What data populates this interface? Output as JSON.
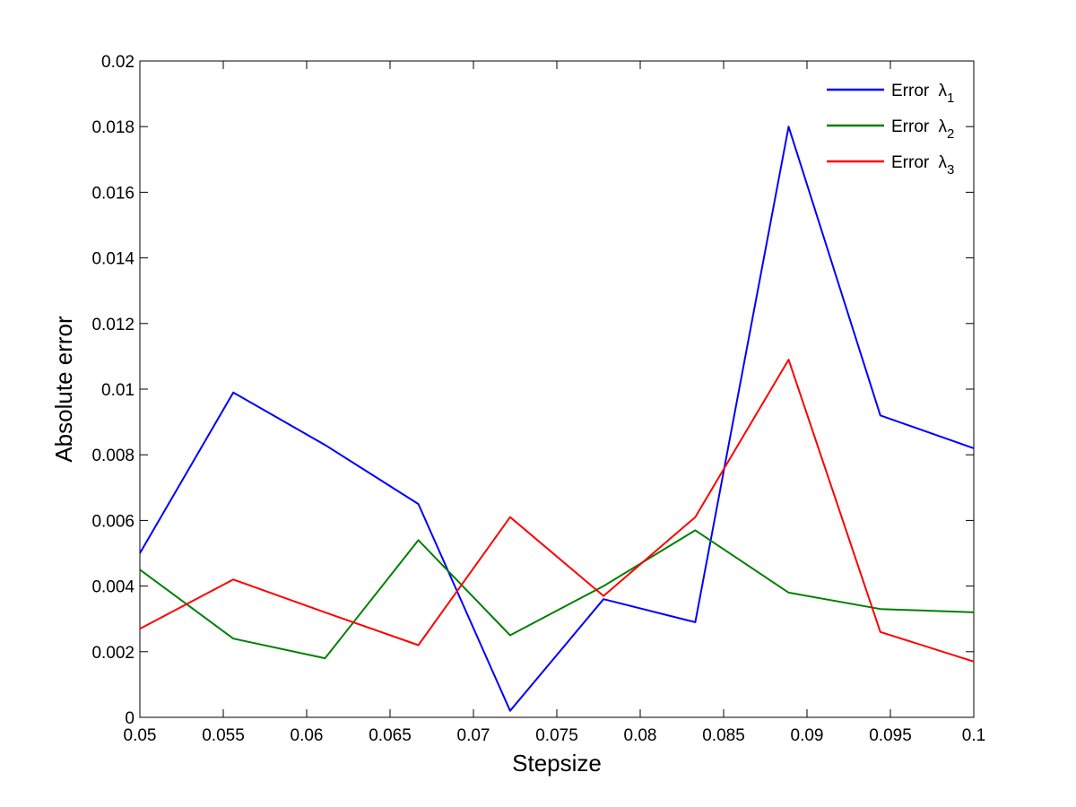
{
  "chart_data": {
    "type": "line",
    "title": "",
    "xlabel": "Stepsize",
    "ylabel": "Absolute error",
    "xlim": [
      0.05,
      0.1
    ],
    "ylim": [
      0,
      0.02
    ],
    "xticks": [
      0.05,
      0.055,
      0.06,
      0.065,
      0.07,
      0.075,
      0.08,
      0.085,
      0.09,
      0.095,
      0.1
    ],
    "xtick_labels": [
      "0.05",
      "0.055",
      "0.06",
      "0.065",
      "0.07",
      "0.075",
      "0.08",
      "0.085",
      "0.09",
      "0.095",
      "0.1"
    ],
    "yticks": [
      0,
      0.002,
      0.004,
      0.006,
      0.008,
      0.01,
      0.012,
      0.014,
      0.016,
      0.018,
      0.02
    ],
    "ytick_labels": [
      "0",
      "0.002",
      "0.004",
      "0.006",
      "0.008",
      "0.01",
      "0.012",
      "0.014",
      "0.016",
      "0.018",
      "0.02"
    ],
    "grid": false,
    "legend_position": "top-right",
    "x": [
      0.05,
      0.0556,
      0.0611,
      0.0667,
      0.0722,
      0.0778,
      0.0833,
      0.0889,
      0.0944,
      0.1
    ],
    "series": [
      {
        "name_prefix": "Error ",
        "symbol": "λ",
        "subscript": "1",
        "color": "#0000ff",
        "values": [
          0.005,
          0.0099,
          0.0083,
          0.0065,
          0.0002,
          0.0036,
          0.0029,
          0.018,
          0.0092,
          0.0082
        ]
      },
      {
        "name_prefix": "Error ",
        "symbol": "λ",
        "subscript": "2",
        "color": "#008000",
        "values": [
          0.0045,
          0.0024,
          0.0018,
          0.0054,
          0.0025,
          0.004,
          0.0057,
          0.0038,
          0.0033,
          0.0032
        ]
      },
      {
        "name_prefix": "Error ",
        "symbol": "λ",
        "subscript": "3",
        "color": "#ff0000",
        "values": [
          0.0027,
          0.0042,
          0.0032,
          0.0022,
          0.0061,
          0.0037,
          0.0061,
          0.0109,
          0.0026,
          0.0017
        ]
      }
    ]
  }
}
